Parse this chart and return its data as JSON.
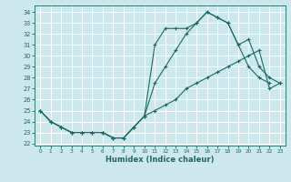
{
  "xlabel": "Humidex (Indice chaleur)",
  "bg_color": "#cce8ec",
  "grid_color": "#ffffff",
  "line_color": "#1a6b60",
  "xlim": [
    -0.5,
    23.5
  ],
  "ylim": [
    21.8,
    34.6
  ],
  "yticks": [
    22,
    23,
    24,
    25,
    26,
    27,
    28,
    29,
    30,
    31,
    32,
    33,
    34
  ],
  "xticks": [
    0,
    1,
    2,
    3,
    4,
    5,
    6,
    7,
    8,
    9,
    10,
    11,
    12,
    13,
    14,
    15,
    16,
    17,
    18,
    19,
    20,
    21,
    22,
    23
  ],
  "series1_x": [
    0,
    1,
    2,
    3,
    4,
    5,
    6,
    7,
    8,
    9,
    10,
    11,
    12,
    13,
    14,
    15,
    16,
    17,
    18,
    19,
    20,
    21,
    22
  ],
  "series1_y": [
    25.0,
    24.0,
    23.5,
    23.0,
    23.0,
    23.0,
    23.0,
    22.5,
    22.5,
    23.5,
    24.5,
    31.0,
    32.5,
    32.5,
    32.5,
    33.0,
    34.0,
    33.5,
    33.0,
    31.0,
    29.0,
    28.0,
    27.5
  ],
  "series2_x": [
    0,
    1,
    2,
    3,
    4,
    5,
    6,
    7,
    8,
    9,
    10,
    11,
    12,
    13,
    14,
    15,
    16,
    17,
    18,
    19,
    20,
    21,
    22,
    23
  ],
  "series2_y": [
    25.0,
    24.0,
    23.5,
    23.0,
    23.0,
    23.0,
    23.0,
    22.5,
    22.5,
    23.5,
    24.5,
    27.5,
    29.0,
    30.5,
    32.0,
    33.0,
    34.0,
    33.5,
    33.0,
    31.0,
    31.5,
    29.0,
    28.0,
    27.5
  ],
  "series3_x": [
    0,
    1,
    2,
    3,
    4,
    5,
    6,
    7,
    8,
    9,
    10,
    11,
    12,
    13,
    14,
    15,
    16,
    17,
    18,
    19,
    20,
    21,
    22,
    23
  ],
  "series3_y": [
    25.0,
    24.0,
    23.5,
    23.0,
    23.0,
    23.0,
    23.0,
    22.5,
    22.5,
    23.5,
    24.5,
    25.0,
    25.5,
    26.0,
    27.0,
    27.5,
    28.0,
    28.5,
    29.0,
    29.5,
    30.0,
    30.5,
    27.0,
    27.5
  ]
}
